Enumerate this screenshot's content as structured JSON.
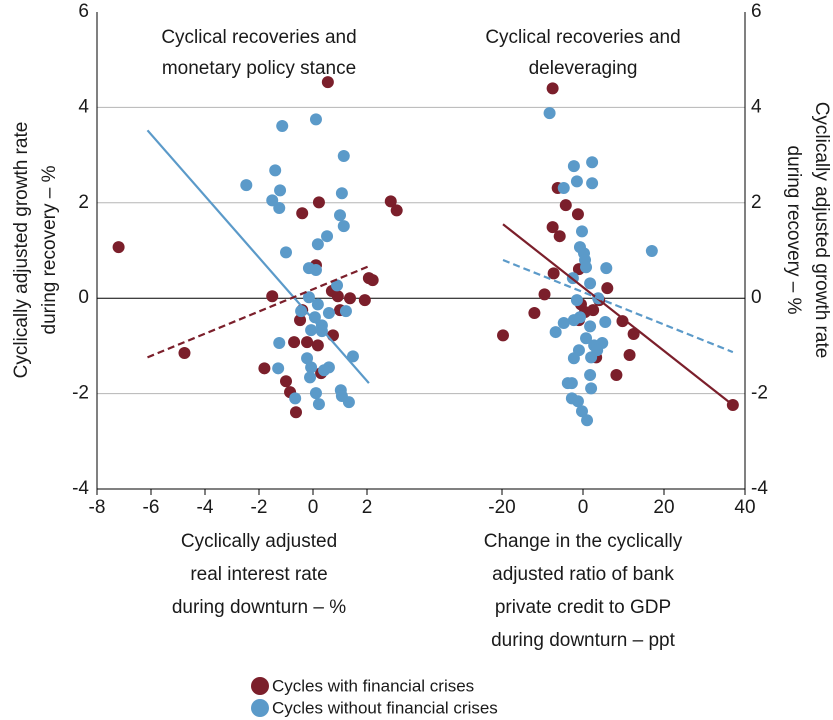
{
  "chart_data": [
    {
      "type": "scatter",
      "title": [
        "Cyclical recoveries and",
        "monetary policy stance"
      ],
      "xlabel": [
        "Cyclically adjusted",
        "real interest rate",
        "during downturn – %"
      ],
      "ylabel": [
        "Cyclically adjusted growth rate",
        "during recovery – %"
      ],
      "yaxis_side": "left",
      "xlim": [
        -8,
        4
      ],
      "xticks": [
        -8,
        -6,
        -4,
        -2,
        0,
        2
      ],
      "ylim": [
        -4,
        6
      ],
      "yticks": [
        -4,
        -2,
        0,
        2,
        4,
        6
      ],
      "grid": true,
      "series": [
        {
          "name": "Cycles with financial crises",
          "color": "#7b1f2b",
          "x": [
            -7.2,
            -4.76,
            0.55,
            -0.4,
            0.22,
            2.88,
            3.1,
            0.11,
            2.07,
            2.21,
            -1.51,
            1.37,
            1.92,
            0.92,
            0.7,
            -0.48,
            -0.4,
            0.18,
            0.74,
            1.0,
            -1.8,
            -0.7,
            -1.0,
            -0.85,
            -0.63,
            0.3,
            -0.22
          ],
          "y": [
            1.07,
            -1.15,
            4.53,
            1.78,
            2.01,
            2.03,
            1.84,
            0.69,
            0.42,
            0.38,
            0.04,
            0.0,
            -0.04,
            0.04,
            0.15,
            -0.46,
            -0.25,
            -0.99,
            -0.78,
            -0.25,
            -1.47,
            -0.92,
            -1.74,
            -1.97,
            -2.39,
            -1.57,
            -0.92
          ]
        },
        {
          "name": "Cycles without financial crises",
          "color": "#5b9ac9",
          "x": [
            -1.14,
            0.11,
            1.14,
            -2.47,
            -1.4,
            -1.22,
            -1.51,
            -1.25,
            1.07,
            1.0,
            1.14,
            0.52,
            -1.0,
            0.18,
            -0.15,
            0.11,
            0.89,
            -0.15,
            0.18,
            -0.44,
            0.07,
            0.59,
            1.22,
            0.33,
            -0.07,
            -1.25,
            0.33,
            1.48,
            -1.29,
            -0.22,
            -0.07,
            0.59,
            0.41,
            -0.11,
            1.03,
            1.07,
            1.33,
            -0.66,
            0.11,
            0.22
          ],
          "y": [
            3.61,
            3.75,
            2.98,
            2.37,
            2.68,
            2.26,
            2.05,
            1.89,
            2.2,
            1.74,
            1.51,
            1.3,
            0.96,
            1.13,
            0.63,
            0.59,
            0.27,
            0.02,
            -0.13,
            -0.27,
            -0.4,
            -0.31,
            -0.27,
            -0.57,
            -0.67,
            -0.94,
            -0.69,
            -1.22,
            -1.47,
            -1.26,
            -1.45,
            -1.45,
            -1.51,
            -1.66,
            -1.93,
            -2.05,
            -2.18,
            -2.1,
            -1.99,
            -2.22
          ]
        }
      ],
      "lines": [
        {
          "color": "#5b9ac9",
          "dash": false,
          "x": [
            -6.13,
            2.07
          ],
          "y": [
            3.52,
            -1.78
          ]
        },
        {
          "color": "#7b1f2b",
          "dash": true,
          "x": [
            -6.13,
            2.07
          ],
          "y": [
            -1.24,
            0.67
          ]
        }
      ]
    },
    {
      "type": "scatter",
      "title": [
        "Cyclical recoveries and",
        "deleveraging"
      ],
      "xlabel": [
        "Change in the cyclically",
        "adjusted ratio of bank",
        "private credit to GDP",
        "during downturn – ppt"
      ],
      "ylabel": [
        "Cyclically adjusted growth rate",
        "during recovery – %"
      ],
      "yaxis_side": "right",
      "xlim": [
        -40,
        40
      ],
      "xticks": [
        -20,
        0,
        20,
        40
      ],
      "ylim": [
        -4,
        6
      ],
      "yticks": [
        -4,
        -2,
        0,
        2,
        4,
        6
      ],
      "grid": true,
      "series": [
        {
          "color": "#7b1f2b",
          "x": [
            -7.5,
            -6.25,
            -4.25,
            -1.25,
            -5.75,
            -7.5,
            -7.25,
            -1,
            -19.75,
            -9.5,
            -12,
            -0.5,
            0.5,
            2.5,
            4,
            6,
            -1,
            9.75,
            11.5,
            12.5,
            8.25,
            3.25,
            37
          ],
          "y": [
            4.4,
            2.31,
            1.95,
            1.76,
            1.3,
            1.49,
            0.52,
            0.61,
            -0.78,
            0.08,
            -0.31,
            -0.13,
            -0.29,
            -0.25,
            -0.04,
            0.21,
            -0.46,
            -0.48,
            -1.19,
            -0.75,
            -1.61,
            -1.24,
            -2.24
          ]
        },
        {
          "color": "#5b9ac9",
          "x": [
            -8.25,
            -2.25,
            2.25,
            -1.5,
            2.25,
            -4.75,
            -0.25,
            -0.75,
            0.25,
            0.5,
            17,
            0.75,
            5.75,
            -2.5,
            1.75,
            -1.5,
            3.75,
            -2.25,
            -4.75,
            -6.75,
            -0.75,
            1.75,
            5.5,
            0.75,
            -1,
            2.75,
            4.75,
            3.5,
            -2.25,
            2,
            -2.75,
            -3.75,
            1.75,
            2,
            -2.75,
            -1.25,
            -0.25,
            1
          ],
          "y": [
            3.88,
            2.77,
            2.85,
            2.45,
            2.41,
            2.31,
            1.4,
            1.07,
            0.94,
            0.8,
            0.99,
            0.65,
            0.63,
            0.42,
            0.31,
            -0.04,
            0,
            -0.46,
            -0.52,
            -0.71,
            -0.4,
            -0.59,
            -0.5,
            -0.84,
            -1.09,
            -0.99,
            -0.94,
            -1.09,
            -1.26,
            -1.24,
            -1.78,
            -1.78,
            -1.61,
            -1.89,
            -2.1,
            -2.16,
            -2.37,
            -2.56
          ]
        }
      ],
      "lines": [
        {
          "color": "#7b1f2b",
          "dash": false,
          "x": [
            -19.75,
            37
          ],
          "y": [
            1.55,
            -2.24
          ]
        },
        {
          "color": "#5b9ac9",
          "dash": true,
          "x": [
            -19.75,
            37
          ],
          "y": [
            0.8,
            -1.13
          ]
        }
      ]
    }
  ]
}
